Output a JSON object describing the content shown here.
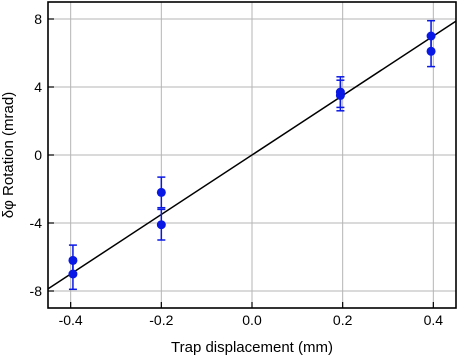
{
  "chart_data": {
    "type": "scatter",
    "xlabel": "Trap displacement (mm)",
    "ylabel": "δφ Rotation (mrad)",
    "xlim": [
      -0.45,
      0.45
    ],
    "ylim": [
      -9,
      9
    ],
    "x_ticks": [
      -0.4,
      -0.2,
      0.0,
      0.2,
      0.4
    ],
    "x_tick_labels": [
      "-0.4",
      "-0.2",
      "0.0",
      "0.2",
      "0.4"
    ],
    "y_ticks": [
      -8,
      -4,
      0,
      4,
      8
    ],
    "y_tick_labels": [
      "-8",
      "-4",
      "0",
      "4",
      "8"
    ],
    "grid": true,
    "points": [
      {
        "x": -0.395,
        "y": -6.2,
        "err": 0.9
      },
      {
        "x": -0.395,
        "y": -7.0,
        "err": 0.9
      },
      {
        "x": -0.2,
        "y": -2.2,
        "err": 0.9
      },
      {
        "x": -0.2,
        "y": -4.1,
        "err": 0.9
      },
      {
        "x": 0.195,
        "y": 3.5,
        "err": 0.9
      },
      {
        "x": 0.195,
        "y": 3.7,
        "err": 0.9
      },
      {
        "x": 0.395,
        "y": 7.0,
        "err": 0.9
      },
      {
        "x": 0.395,
        "y": 6.1,
        "err": 0.9
      }
    ],
    "fit_line": {
      "slope": 17.5,
      "intercept": 0.0
    },
    "colors": {
      "points": "#0a18e6",
      "fit": "#000000",
      "grid": "#b5b5b5"
    }
  }
}
